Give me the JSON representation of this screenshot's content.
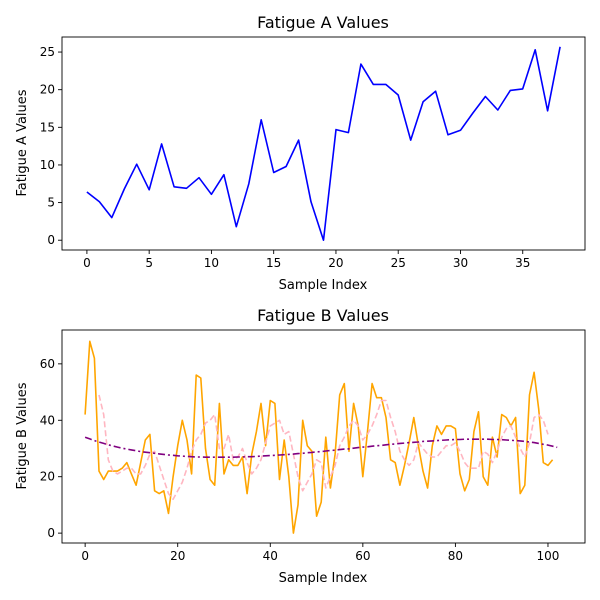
{
  "chart_data": [
    {
      "type": "line",
      "title": "Fatigue A Values",
      "xlabel": "Sample Index",
      "ylabel": "Fatigue A Values",
      "xlim": [
        -2,
        40
      ],
      "ylim": [
        -1.3,
        27
      ],
      "xticks": [
        0,
        5,
        10,
        15,
        20,
        25,
        30,
        35
      ],
      "yticks": [
        0,
        5,
        10,
        15,
        20,
        25
      ],
      "grid": false,
      "colors": {
        "series": "#0000ff"
      },
      "series": [
        {
          "style": "solid",
          "x": [
            0,
            1,
            2,
            3,
            4,
            5,
            6,
            7,
            8,
            9,
            10,
            11,
            12,
            13,
            14,
            15,
            16,
            17,
            18,
            19,
            20,
            21,
            22,
            23,
            24,
            25,
            26,
            27,
            28,
            29,
            30,
            31,
            32,
            33,
            34,
            35,
            36,
            37,
            38
          ],
          "values": [
            6.4,
            5.1,
            3.0,
            6.8,
            10.1,
            6.7,
            12.8,
            7.1,
            6.9,
            8.3,
            6.1,
            8.7,
            1.8,
            7.5,
            16.0,
            9.0,
            9.8,
            13.3,
            5.1,
            0.0,
            14.7,
            14.3,
            23.4,
            20.7,
            20.7,
            19.3,
            13.3,
            18.4,
            19.8,
            14.0,
            14.6,
            16.9,
            19.1,
            17.3,
            19.9,
            20.1,
            25.3,
            17.2,
            25.7
          ]
        }
      ]
    },
    {
      "type": "line",
      "title": "Fatigue B Values",
      "xlabel": "Sample Index",
      "ylabel": "Fatigue B Values",
      "xlim": [
        -5,
        108
      ],
      "ylim": [
        -3.5,
        72
      ],
      "xticks": [
        0,
        20,
        40,
        60,
        80,
        100
      ],
      "yticks": [
        0,
        20,
        40,
        60
      ],
      "grid": false,
      "colors": {
        "raw": "#ffa500",
        "smoothed": "#ffb6c1",
        "trend": "#800080"
      },
      "series": [
        {
          "style": "solid",
          "color_key": "raw",
          "x_start": 0,
          "values": [
            42,
            68,
            62,
            22,
            19,
            22,
            22,
            22,
            23,
            25,
            21,
            17,
            25,
            33,
            35,
            15,
            14,
            15,
            7,
            20,
            31,
            40,
            33,
            21,
            56,
            55,
            30,
            19,
            17,
            46,
            21,
            26,
            24,
            24,
            27,
            14,
            28,
            36,
            46,
            31,
            47,
            46,
            19,
            33,
            20,
            0,
            10,
            40,
            31,
            29,
            6,
            11,
            34,
            16,
            28,
            49,
            53,
            29,
            46,
            38,
            20,
            36,
            53,
            48,
            48,
            41,
            26,
            25,
            17,
            24,
            32,
            41,
            31,
            22,
            16,
            31,
            38,
            35,
            38,
            38,
            37,
            21,
            15,
            19,
            36,
            43,
            20,
            17,
            34,
            27,
            42,
            41,
            38,
            41,
            14,
            17,
            49,
            57,
            44,
            25,
            24,
            26
          ]
        },
        {
          "style": "dashed",
          "color_key": "smoothed",
          "x_start": 3,
          "values": [
            49,
            42,
            26,
            22,
            21,
            22,
            23,
            23,
            21,
            21,
            24,
            28,
            29,
            24,
            19,
            14,
            12,
            15,
            18,
            23,
            29,
            33,
            35,
            39,
            40,
            42,
            30,
            30,
            35,
            26,
            27,
            30,
            25,
            21,
            23,
            26,
            32,
            38,
            39,
            40,
            35,
            36,
            28,
            20,
            15,
            18,
            21,
            26,
            25,
            16,
            20,
            24,
            31,
            34,
            38,
            40,
            38,
            33,
            35,
            38,
            42,
            47,
            47,
            41,
            36,
            29,
            26,
            24,
            26,
            32,
            30,
            28,
            27,
            27,
            29,
            31,
            31,
            32,
            29,
            25,
            23,
            23,
            23,
            29,
            28,
            25,
            29,
            34,
            37,
            38,
            34,
            30,
            27,
            32,
            41,
            42,
            40,
            35
          ]
        },
        {
          "style": "dashdot",
          "color_key": "trend",
          "x_start": 0,
          "values": [
            34.0,
            33.4,
            32.8,
            32.3,
            31.8,
            31.3,
            30.9,
            30.5,
            30.1,
            29.8,
            29.5,
            29.2,
            28.9,
            28.7,
            28.5,
            28.3,
            28.1,
            27.9,
            27.7,
            27.6,
            27.4,
            27.3,
            27.2,
            27.1,
            27.0,
            27.0,
            26.9,
            26.9,
            26.9,
            26.9,
            26.9,
            26.9,
            26.9,
            27.0,
            27.0,
            27.1,
            27.1,
            27.2,
            27.3,
            27.4,
            27.5,
            27.6,
            27.7,
            27.8,
            27.9,
            28.0,
            28.2,
            28.3,
            28.5,
            28.6,
            28.8,
            28.9,
            29.1,
            29.3,
            29.4,
            29.6,
            29.8,
            29.9,
            30.1,
            30.3,
            30.5,
            30.6,
            30.8,
            31.0,
            31.1,
            31.3,
            31.5,
            31.6,
            31.8,
            31.9,
            32.1,
            32.2,
            32.3,
            32.5,
            32.6,
            32.7,
            32.8,
            32.9,
            33.0,
            33.1,
            33.2,
            33.2,
            33.3,
            33.3,
            33.3,
            33.3,
            33.3,
            33.3,
            33.2,
            33.2,
            33.1,
            33.0,
            32.9,
            32.8,
            32.7,
            32.5,
            32.3,
            32.1,
            31.8,
            31.5,
            31.2,
            30.8,
            30.4
          ]
        }
      ]
    }
  ]
}
